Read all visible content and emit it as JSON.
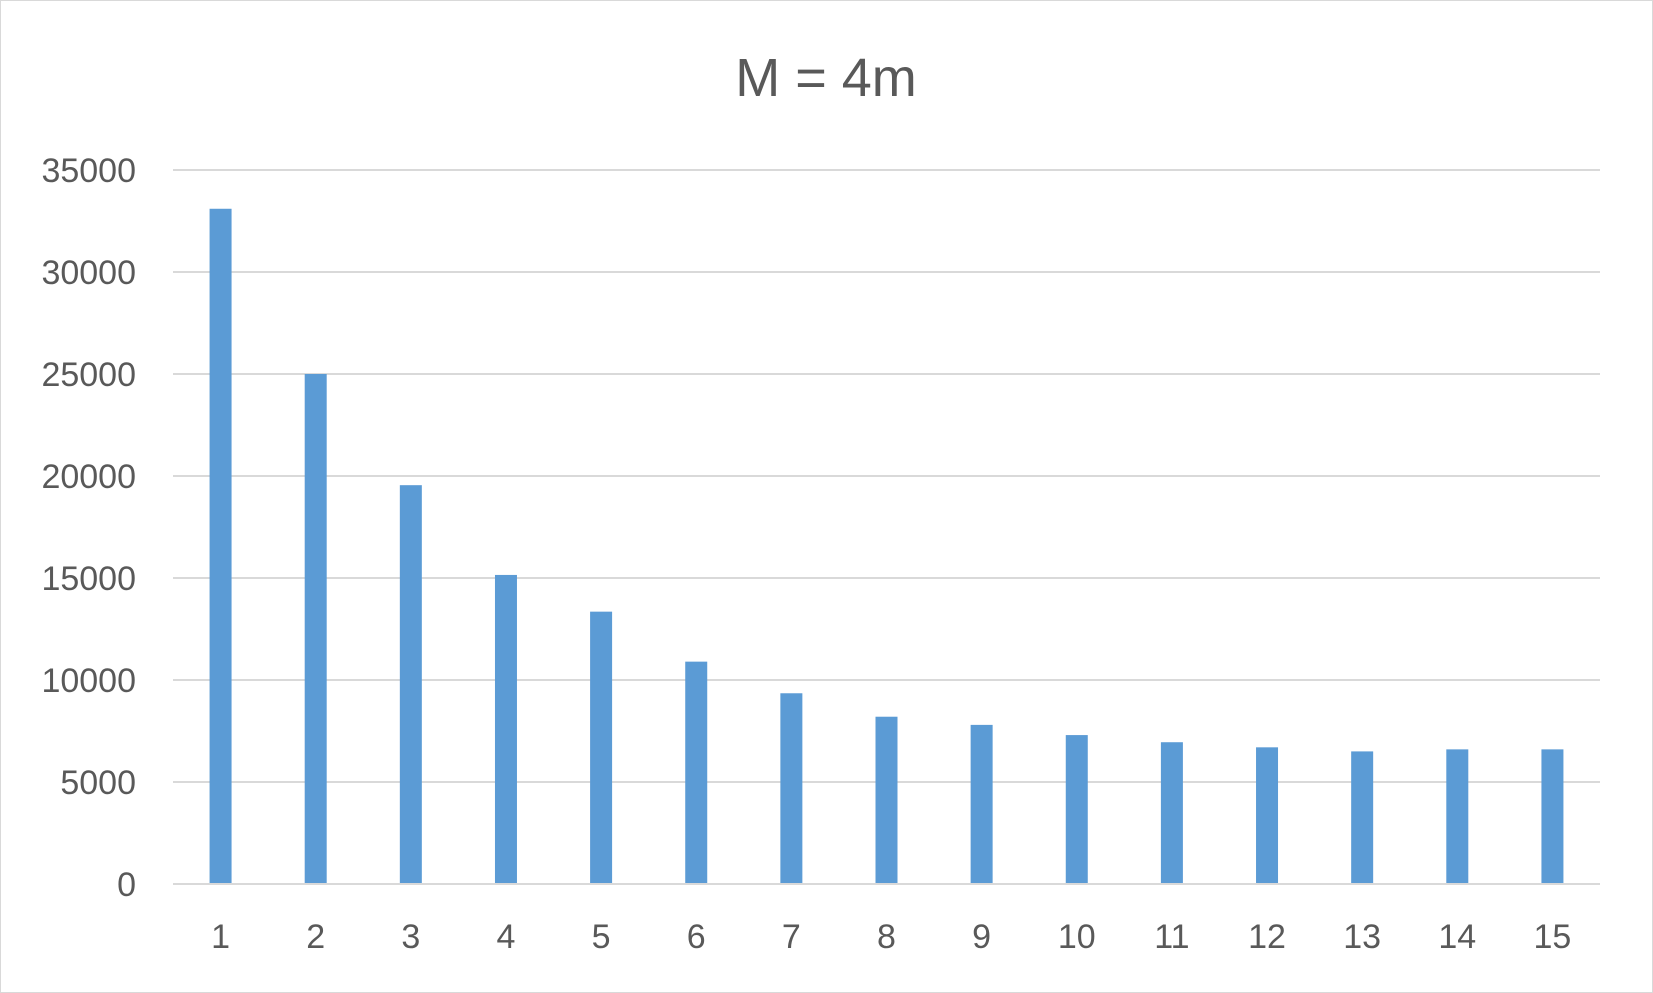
{
  "chart_data": {
    "type": "bar",
    "title": "M = 4m",
    "xlabel": "",
    "ylabel": "",
    "categories": [
      "1",
      "2",
      "3",
      "4",
      "5",
      "6",
      "7",
      "8",
      "9",
      "10",
      "11",
      "12",
      "13",
      "14",
      "15"
    ],
    "values": [
      33100,
      25000,
      19550,
      15150,
      13350,
      10900,
      9350,
      8200,
      7800,
      7300,
      6950,
      6700,
      6500,
      6600,
      6600
    ],
    "ylim": [
      0,
      35000
    ],
    "yticks": [
      "0",
      "5000",
      "10000",
      "15000",
      "20000",
      "25000",
      "30000",
      "35000"
    ],
    "grid": true,
    "legend": "none",
    "colors": {
      "bar": "#5b9bd5",
      "grid": "#d9d9d9",
      "text": "#595959",
      "border": "#d9d9d9"
    }
  }
}
